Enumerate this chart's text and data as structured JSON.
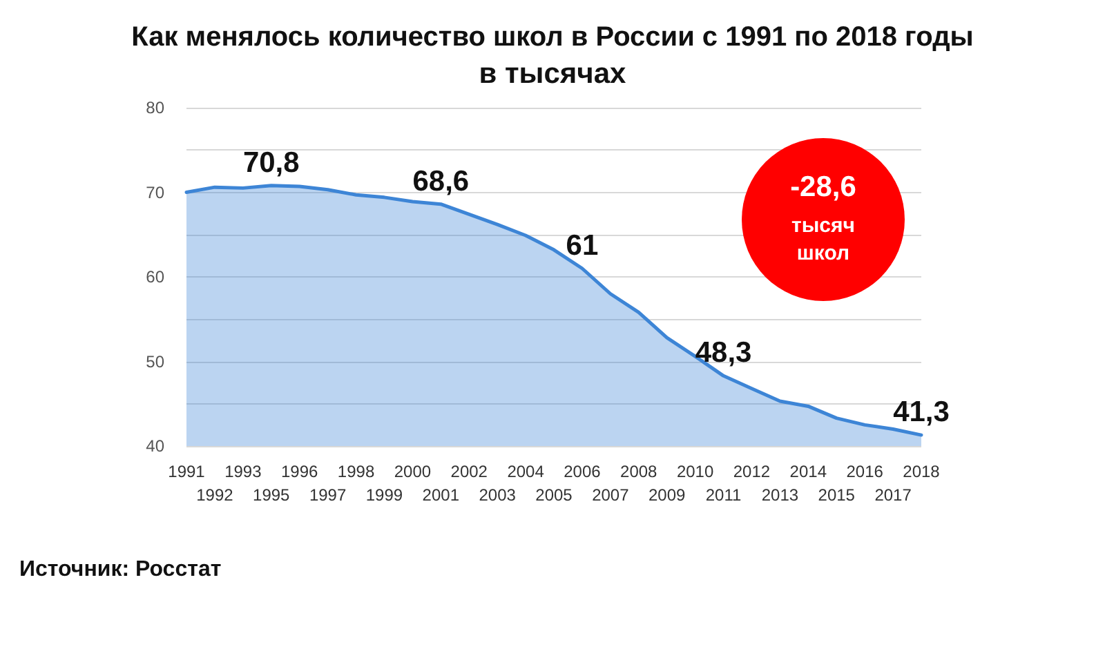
{
  "chart_data": {
    "type": "area",
    "title": "Как менялось количество школ в России с 1991 по 2018 годы",
    "subtitle": "в тысячах",
    "categories": [
      "1991",
      "1992",
      "1993",
      "1995",
      "1996",
      "1997",
      "1998",
      "1999",
      "2000",
      "2001",
      "2002",
      "2003",
      "2004",
      "2005",
      "2006",
      "2007",
      "2008",
      "2009",
      "2010",
      "2011",
      "2012",
      "2013",
      "2014",
      "2015",
      "2016",
      "2017",
      "2018"
    ],
    "series": [
      {
        "color": "#3d85d6",
        "values": [
          70.0,
          70.6,
          70.5,
          70.8,
          70.7,
          70.3,
          69.7,
          69.4,
          68.9,
          68.6,
          67.4,
          66.2,
          64.9,
          63.2,
          61.0,
          58.0,
          55.8,
          52.8,
          50.6,
          48.3,
          46.8,
          45.3,
          44.7,
          43.3,
          42.5,
          42.0,
          41.3
        ],
        "value_labels": [
          null,
          null,
          null,
          "70,8",
          null,
          null,
          null,
          null,
          null,
          "68,6",
          null,
          null,
          null,
          null,
          "61",
          null,
          null,
          null,
          null,
          "48,3",
          null,
          null,
          null,
          null,
          null,
          null,
          "41,3"
        ]
      }
    ],
    "ylim": [
      40,
      80
    ],
    "yticks": [
      40,
      {
        "value": 45,
        "label": null
      },
      50,
      {
        "value": 55,
        "label": null
      },
      60,
      {
        "value": 65,
        "label": null
      },
      70,
      {
        "value": 75,
        "label": null
      },
      80
    ],
    "grid": "y",
    "annotations": [
      "-28,6",
      "тысяч школ",
      "Источник: Росстат"
    ]
  }
}
